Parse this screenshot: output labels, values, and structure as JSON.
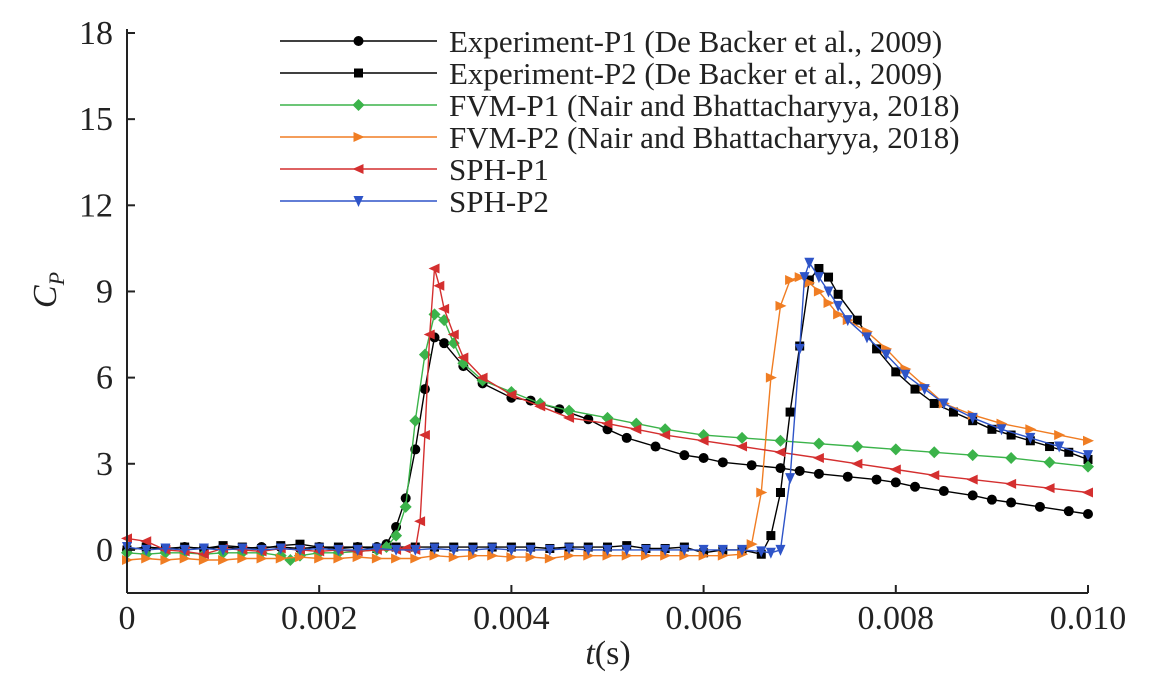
{
  "chart_data": {
    "type": "line",
    "xlabel_italic": "t",
    "xlabel_unit": "(s)",
    "ylabel_main": "C",
    "ylabel_sub": "P",
    "xlim": [
      0,
      0.01
    ],
    "ylim": [
      -1.5,
      18
    ],
    "x_ticks": [
      0,
      0.002,
      0.004,
      0.006,
      0.008,
      0.01
    ],
    "x_tick_labels": [
      "0",
      "0.002",
      "0.004",
      "0.006",
      "0.008",
      "0.010"
    ],
    "y_ticks": [
      0,
      3,
      6,
      9,
      12,
      15,
      18
    ],
    "y_tick_labels": [
      "0",
      "3",
      "6",
      "9",
      "12",
      "15",
      "18"
    ],
    "grid": false,
    "legend_position": "top-right",
    "series": [
      {
        "name": "Experiment-P1 (De Backer et al., 2009)",
        "color": "#000000",
        "marker": "circle",
        "x": [
          0,
          0.0002,
          0.0004,
          0.0006,
          0.0008,
          0.001,
          0.0012,
          0.0014,
          0.0016,
          0.0018,
          0.002,
          0.0022,
          0.0024,
          0.0026,
          0.0027,
          0.0028,
          0.0029,
          0.003,
          0.0031,
          0.0032,
          0.0033,
          0.0035,
          0.0037,
          0.004,
          0.0042,
          0.0045,
          0.0048,
          0.005,
          0.0052,
          0.0055,
          0.0058,
          0.006,
          0.0062,
          0.0065,
          0.0068,
          0.007,
          0.0072,
          0.0075,
          0.0078,
          0.008,
          0.0082,
          0.0085,
          0.0088,
          0.009,
          0.0092,
          0.0095,
          0.0098,
          0.01
        ],
        "y": [
          0.0,
          0.1,
          0.0,
          0.1,
          0.05,
          0.1,
          0.05,
          0.1,
          0.1,
          0.05,
          0.1,
          0.05,
          0.1,
          0.1,
          0.2,
          0.8,
          1.8,
          3.5,
          5.6,
          7.4,
          7.2,
          6.4,
          5.8,
          5.3,
          5.2,
          4.9,
          4.55,
          4.2,
          3.9,
          3.6,
          3.3,
          3.2,
          3.05,
          2.95,
          2.85,
          2.75,
          2.65,
          2.55,
          2.45,
          2.35,
          2.2,
          2.05,
          1.9,
          1.75,
          1.65,
          1.5,
          1.35,
          1.25
        ]
      },
      {
        "name": "Experiment-P2 (De Backer et al., 2009)",
        "color": "#000000",
        "marker": "square",
        "x": [
          0,
          0.0002,
          0.0004,
          0.0006,
          0.0008,
          0.001,
          0.0012,
          0.0014,
          0.0016,
          0.0018,
          0.002,
          0.0022,
          0.0024,
          0.0026,
          0.0028,
          0.003,
          0.0032,
          0.0034,
          0.0036,
          0.0038,
          0.004,
          0.0042,
          0.0044,
          0.0046,
          0.0048,
          0.005,
          0.0052,
          0.0054,
          0.0056,
          0.0058,
          0.006,
          0.0062,
          0.0064,
          0.0066,
          0.0067,
          0.0068,
          0.0069,
          0.007,
          0.0071,
          0.0072,
          0.0073,
          0.0074,
          0.0076,
          0.0078,
          0.008,
          0.0082,
          0.0084,
          0.0086,
          0.0088,
          0.009,
          0.0092,
          0.0094,
          0.0096,
          0.0098,
          0.01
        ],
        "y": [
          0.0,
          0.1,
          0.05,
          0.1,
          0.05,
          0.15,
          0.1,
          0.05,
          0.15,
          0.2,
          0.1,
          0.1,
          0.1,
          0.05,
          0.1,
          0.1,
          0.1,
          0.1,
          0.1,
          0.1,
          0.1,
          0.1,
          0.05,
          0.1,
          0.1,
          0.1,
          0.15,
          0.05,
          0.05,
          0.1,
          -0.1,
          0.0,
          0.0,
          -0.15,
          0.5,
          2.0,
          4.8,
          7.1,
          9.4,
          9.8,
          9.5,
          8.9,
          8.0,
          7.0,
          6.2,
          5.6,
          5.1,
          4.8,
          4.5,
          4.2,
          4.0,
          3.8,
          3.6,
          3.4,
          3.15
        ]
      },
      {
        "name": "FVM-P1 (Nair and Bhattacharyya, 2018)",
        "color": "#3bb34a",
        "marker": "diamond",
        "x": [
          0,
          0.0002,
          0.0004,
          0.0006,
          0.0008,
          0.001,
          0.0012,
          0.0014,
          0.0016,
          0.0017,
          0.0018,
          0.002,
          0.0022,
          0.0024,
          0.0026,
          0.0027,
          0.0028,
          0.0029,
          0.003,
          0.0031,
          0.0032,
          0.0033,
          0.0034,
          0.0035,
          0.0037,
          0.004,
          0.0043,
          0.0046,
          0.005,
          0.0053,
          0.0056,
          0.006,
          0.0064,
          0.0068,
          0.0072,
          0.0076,
          0.008,
          0.0084,
          0.0088,
          0.0092,
          0.0096,
          0.01
        ],
        "y": [
          -0.1,
          -0.15,
          -0.1,
          -0.1,
          -0.15,
          -0.1,
          -0.1,
          -0.1,
          -0.2,
          -0.35,
          -0.2,
          -0.1,
          -0.1,
          -0.05,
          0.0,
          0.1,
          0.5,
          1.5,
          4.5,
          6.8,
          8.2,
          8.0,
          7.2,
          6.5,
          5.9,
          5.5,
          5.1,
          4.85,
          4.6,
          4.4,
          4.2,
          4.0,
          3.9,
          3.8,
          3.7,
          3.6,
          3.5,
          3.4,
          3.3,
          3.2,
          3.05,
          2.9
        ]
      },
      {
        "name": "FVM-P2 (Nair and Bhattacharyya, 2018)",
        "color": "#f07d23",
        "marker": "triangle-right",
        "x": [
          0,
          0.0002,
          0.0004,
          0.0006,
          0.0008,
          0.001,
          0.0012,
          0.0014,
          0.0016,
          0.0018,
          0.002,
          0.0022,
          0.0024,
          0.0026,
          0.0028,
          0.003,
          0.0032,
          0.0034,
          0.0036,
          0.0038,
          0.004,
          0.0042,
          0.0044,
          0.0046,
          0.0048,
          0.005,
          0.0052,
          0.0054,
          0.0056,
          0.0058,
          0.006,
          0.0062,
          0.0064,
          0.0065,
          0.0066,
          0.0067,
          0.0068,
          0.0069,
          0.007,
          0.0071,
          0.0072,
          0.0073,
          0.0074,
          0.0075,
          0.0077,
          0.0079,
          0.0081,
          0.0083,
          0.0085,
          0.0088,
          0.0091,
          0.0094,
          0.0097,
          0.01
        ],
        "y": [
          -0.35,
          -0.3,
          -0.35,
          -0.3,
          -0.35,
          -0.35,
          -0.3,
          -0.3,
          -0.3,
          -0.25,
          -0.3,
          -0.3,
          -0.25,
          -0.3,
          -0.3,
          -0.3,
          -0.2,
          -0.25,
          -0.2,
          -0.2,
          -0.25,
          -0.25,
          -0.3,
          -0.2,
          -0.2,
          -0.2,
          -0.2,
          -0.2,
          -0.2,
          -0.2,
          -0.2,
          -0.2,
          -0.15,
          0.2,
          2.0,
          6.0,
          8.5,
          9.4,
          9.5,
          9.3,
          9.0,
          8.6,
          8.2,
          8.0,
          7.6,
          7.0,
          6.3,
          5.7,
          5.1,
          4.7,
          4.4,
          4.2,
          4.0,
          3.8
        ]
      },
      {
        "name": "SPH-P1",
        "color": "#d42f2f",
        "marker": "triangle-left",
        "x": [
          0,
          0.0002,
          0.0004,
          0.0006,
          0.0008,
          0.001,
          0.0012,
          0.0014,
          0.0016,
          0.0018,
          0.002,
          0.0022,
          0.0024,
          0.0026,
          0.0028,
          0.0029,
          0.003,
          0.00305,
          0.0031,
          0.00315,
          0.0032,
          0.00325,
          0.0033,
          0.0034,
          0.0035,
          0.0037,
          0.004,
          0.0043,
          0.0046,
          0.005,
          0.0053,
          0.0056,
          0.006,
          0.0064,
          0.0068,
          0.0072,
          0.0076,
          0.008,
          0.0084,
          0.0088,
          0.0092,
          0.0096,
          0.01
        ],
        "y": [
          0.4,
          0.3,
          0.0,
          -0.05,
          -0.15,
          0.05,
          0.0,
          -0.05,
          0.05,
          0.0,
          -0.05,
          0.0,
          -0.05,
          0.0,
          0.0,
          0.05,
          0.0,
          1.0,
          4.0,
          7.5,
          9.8,
          9.2,
          8.4,
          7.5,
          6.7,
          6.0,
          5.4,
          5.0,
          4.6,
          4.4,
          4.2,
          4.0,
          3.8,
          3.6,
          3.4,
          3.2,
          3.0,
          2.8,
          2.6,
          2.45,
          2.3,
          2.15,
          2.0
        ]
      },
      {
        "name": "SPH-P2",
        "color": "#2e54c8",
        "marker": "triangle-down",
        "x": [
          0,
          0.0002,
          0.0004,
          0.0006,
          0.0008,
          0.001,
          0.0012,
          0.0014,
          0.0016,
          0.0018,
          0.002,
          0.0022,
          0.0024,
          0.0026,
          0.0028,
          0.003,
          0.0032,
          0.0034,
          0.0036,
          0.0038,
          0.004,
          0.0042,
          0.0044,
          0.0046,
          0.0048,
          0.005,
          0.0052,
          0.0054,
          0.0056,
          0.0058,
          0.006,
          0.0062,
          0.0064,
          0.0066,
          0.0067,
          0.0068,
          0.0069,
          0.007,
          0.00705,
          0.0071,
          0.0072,
          0.0073,
          0.0074,
          0.0075,
          0.0077,
          0.0079,
          0.0081,
          0.0083,
          0.0085,
          0.0088,
          0.0091,
          0.0094,
          0.0097,
          0.01
        ],
        "y": [
          0.1,
          0.0,
          0.05,
          0.0,
          0.05,
          0.0,
          0.05,
          0.0,
          0.05,
          0.0,
          0.05,
          0.0,
          0.0,
          0.05,
          0.0,
          0.0,
          0.05,
          0.0,
          0.0,
          0.05,
          0.0,
          0.0,
          0.0,
          0.05,
          0.0,
          0.0,
          0.0,
          0.0,
          0.0,
          0.0,
          0.0,
          0.0,
          0.0,
          -0.05,
          -0.1,
          0.0,
          2.5,
          7.0,
          9.5,
          10.0,
          9.5,
          9.0,
          8.5,
          8.0,
          7.4,
          6.8,
          6.1,
          5.6,
          5.1,
          4.6,
          4.2,
          3.9,
          3.6,
          3.3
        ]
      }
    ]
  }
}
